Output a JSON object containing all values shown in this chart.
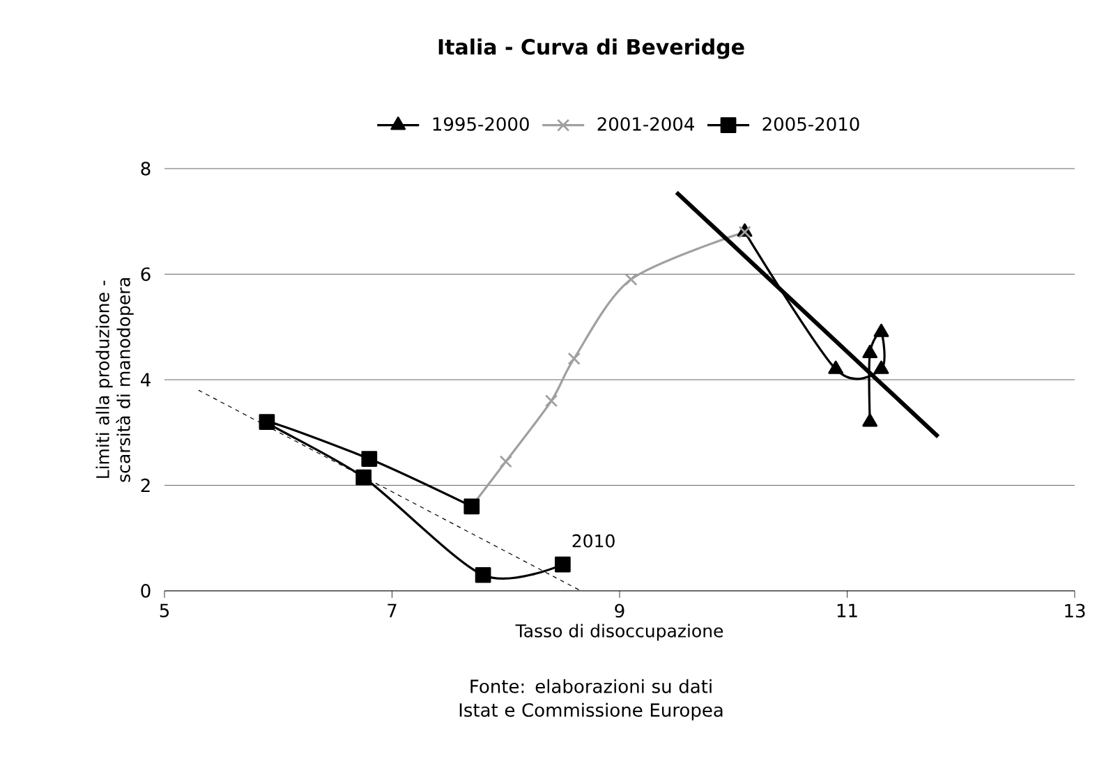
{
  "chart_data": {
    "type": "line",
    "title": "Italia - Curva di Beveridge",
    "xlabel": "Tasso di disoccupazione",
    "ylabel": "Limiti alla produzione - scarsità di manodopera",
    "annotations": [
      {
        "text": "2010",
        "x": 8.5,
        "y": 0.5
      },
      "Fonte: elaborazioni su dati Istat e Commissione Europea"
    ],
    "xlim": [
      5,
      13
    ],
    "xticks": [
      5,
      7,
      9,
      11,
      13
    ],
    "ylim": [
      0,
      8
    ],
    "yticks": [
      0,
      2,
      4,
      6,
      8
    ],
    "grid": "y",
    "legend": "top",
    "series": [
      {
        "name": "1995-2000",
        "color": "#000000",
        "marker": "triangle",
        "line_style": "solid",
        "x": [
          11.2,
          11.2,
          11.3,
          11.3,
          10.9,
          10.1
        ],
        "values": [
          3.2,
          4.5,
          4.9,
          4.2,
          4.2,
          6.8
        ]
      },
      {
        "name": "2001-2004",
        "color": "#a0a0a0",
        "marker": "cross",
        "line_style": "solid",
        "x": [
          10.1,
          9.1,
          8.6,
          8.4,
          8.0,
          7.7
        ],
        "values": [
          6.8,
          5.9,
          4.4,
          3.6,
          2.45,
          1.6
        ]
      },
      {
        "name": "2005-2010",
        "color": "#000000",
        "marker": "square",
        "line_style": "solid",
        "x": [
          7.7,
          6.8,
          5.9,
          6.75,
          7.8,
          8.5
        ],
        "values": [
          1.6,
          2.5,
          3.2,
          2.15,
          0.3,
          0.5
        ]
      },
      {
        "color": "#000000",
        "marker": "none",
        "line_style": "solid",
        "x": [
          9.5,
          11.8
        ],
        "values": [
          7.55,
          2.92
        ]
      },
      {
        "color": "#000000",
        "marker": "none",
        "line_style": "dashed",
        "x": [
          5.3,
          8.66
        ],
        "values": [
          3.8,
          0.0
        ]
      }
    ]
  }
}
